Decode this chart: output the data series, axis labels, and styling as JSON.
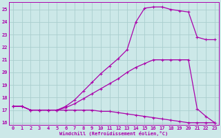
{
  "xlabel": "Windchill (Refroidissement éolien,°C)",
  "bg_color": "#cce8e8",
  "grid_color": "#aacece",
  "line_color": "#aa00aa",
  "xlim": [
    -0.5,
    23.5
  ],
  "ylim": [
    15.8,
    25.6
  ],
  "xticks": [
    0,
    1,
    2,
    3,
    4,
    5,
    6,
    7,
    8,
    9,
    10,
    11,
    12,
    13,
    14,
    15,
    16,
    17,
    18,
    19,
    20,
    21,
    22,
    23
  ],
  "yticks": [
    16,
    17,
    18,
    19,
    20,
    21,
    22,
    23,
    24,
    25
  ],
  "curve1_x": [
    0,
    1,
    2,
    3,
    4,
    5,
    6,
    7,
    8,
    9,
    10,
    11,
    12,
    13,
    14,
    15,
    16,
    17,
    18,
    19,
    20,
    21,
    22,
    23
  ],
  "curve1_y": [
    17.3,
    17.3,
    17.0,
    17.0,
    17.0,
    17.0,
    17.0,
    17.0,
    17.0,
    17.0,
    16.9,
    16.9,
    16.8,
    16.7,
    16.6,
    16.5,
    16.4,
    16.3,
    16.2,
    16.1,
    16.0,
    16.0,
    16.0,
    16.0
  ],
  "curve2_x": [
    0,
    1,
    2,
    3,
    4,
    5,
    6,
    7,
    8,
    9,
    10,
    11,
    12,
    13,
    14,
    15,
    16,
    17,
    18,
    19,
    20,
    21,
    22,
    23
  ],
  "curve2_y": [
    17.3,
    17.3,
    17.0,
    17.0,
    17.0,
    17.0,
    17.3,
    17.8,
    18.5,
    19.2,
    19.9,
    20.5,
    21.1,
    21.8,
    24.0,
    25.1,
    25.2,
    25.2,
    25.0,
    24.9,
    24.8,
    22.8,
    22.6,
    22.6
  ],
  "curve3_x": [
    0,
    1,
    2,
    3,
    4,
    5,
    6,
    7,
    8,
    9,
    10,
    11,
    12,
    13,
    14,
    15,
    16,
    17,
    18,
    19,
    20,
    21,
    22,
    23
  ],
  "curve3_y": [
    17.3,
    17.3,
    17.0,
    17.0,
    17.0,
    17.0,
    17.2,
    17.5,
    17.9,
    18.3,
    18.7,
    19.1,
    19.5,
    20.0,
    20.4,
    20.7,
    21.0,
    21.0,
    21.0,
    21.0,
    21.0,
    17.1,
    16.5,
    16.0
  ]
}
